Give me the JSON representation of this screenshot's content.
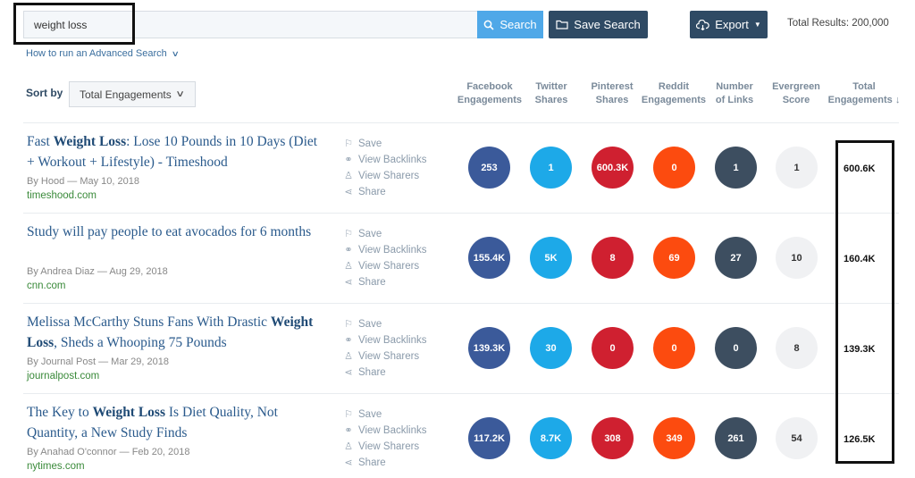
{
  "search": {
    "query": "weight loss",
    "search_label": "Search",
    "save_search_label": "Save Search",
    "export_label": "Export",
    "total_results": "Total Results: 200,000",
    "advanced_link": "How to run an Advanced Search"
  },
  "sort": {
    "label": "Sort by",
    "selected": "Total Engagements"
  },
  "columns": [
    {
      "line1": "Facebook",
      "line2": "Engagements"
    },
    {
      "line1": "Twitter",
      "line2": "Shares"
    },
    {
      "line1": "Pinterest",
      "line2": "Shares"
    },
    {
      "line1": "Reddit",
      "line2": "Engagements"
    },
    {
      "line1": "Number",
      "line2": "of Links"
    },
    {
      "line1": "Evergreen",
      "line2": "Score"
    },
    {
      "line1": "Total",
      "line2": "Engagements ↓"
    }
  ],
  "actions": {
    "save": "Save",
    "backlinks": "View Backlinks",
    "sharers": "View Sharers",
    "share": "Share"
  },
  "colors": {
    "facebook": "#3b5a9a",
    "twitter": "#1da9e8",
    "pinterest": "#cf2030",
    "reddit": "#fc4b0f",
    "links": "#3d4e60",
    "evergreen": "#f0f1f3"
  },
  "results": [
    {
      "title_pre": "Fast ",
      "title_bold": "Weight Loss",
      "title_post": ": Lose 10 Pounds in 10 Days (Diet + Workout + Lifestyle) - Timeshood",
      "author": "By Hood",
      "date": "May 10, 2018",
      "domain": "timeshood.com",
      "facebook": "253",
      "twitter": "1",
      "pinterest": "600.3K",
      "reddit": "0",
      "links": "1",
      "evergreen": "1",
      "total": "600.6K"
    },
    {
      "title_pre": "Study will pay people to eat avocados for 6 months",
      "title_bold": "",
      "title_post": "",
      "author": "By Andrea Diaz",
      "date": "Aug 29, 2018",
      "domain": "cnn.com",
      "facebook": "155.4K",
      "twitter": "5K",
      "pinterest": "8",
      "reddit": "69",
      "links": "27",
      "evergreen": "10",
      "total": "160.4K"
    },
    {
      "title_pre": "Melissa McCarthy Stuns Fans With Drastic ",
      "title_bold": "Weight Loss",
      "title_post": ", Sheds a Whooping 75 Pounds",
      "author": "By Journal Post",
      "date": "Mar 29, 2018",
      "domain": "journalpost.com",
      "facebook": "139.3K",
      "twitter": "30",
      "pinterest": "0",
      "reddit": "0",
      "links": "0",
      "evergreen": "8",
      "total": "139.3K"
    },
    {
      "title_pre": "The Key to ",
      "title_bold": "Weight Loss",
      "title_post": " Is Diet Quality, Not Quantity, a New Study Finds",
      "author": "By Anahad O'connor",
      "date": "Feb 20, 2018",
      "domain": "nytimes.com",
      "facebook": "117.2K",
      "twitter": "8.7K",
      "pinterest": "308",
      "reddit": "349",
      "links": "261",
      "evergreen": "54",
      "total": "126.5K"
    }
  ]
}
